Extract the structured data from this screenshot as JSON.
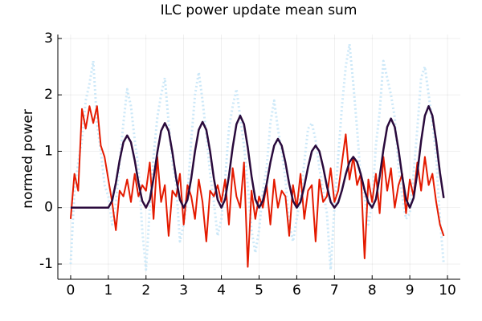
{
  "chart_data": {
    "type": "line",
    "title": "ILC power update mean sum",
    "y_label": "normed power",
    "x": [
      0,
      0.1,
      0.2,
      0.3,
      0.4,
      0.5,
      0.6,
      0.7,
      0.8,
      0.9,
      1,
      1.1,
      1.2,
      1.3,
      1.4,
      1.5,
      1.6,
      1.7,
      1.8,
      1.9,
      2,
      2.1,
      2.2,
      2.3,
      2.4,
      2.5,
      2.6,
      2.7,
      2.8,
      2.9,
      3,
      3.1,
      3.2,
      3.3,
      3.4,
      3.5,
      3.6,
      3.7,
      3.8,
      3.9,
      4,
      4.1,
      4.2,
      4.3,
      4.4,
      4.5,
      4.6,
      4.7,
      4.8,
      4.9,
      5,
      5.1,
      5.2,
      5.3,
      5.4,
      5.5,
      5.6,
      5.7,
      5.8,
      5.9,
      6,
      6.1,
      6.2,
      6.3,
      6.4,
      6.5,
      6.6,
      6.7,
      6.8,
      6.9,
      7,
      7.1,
      7.2,
      7.3,
      7.4,
      7.5,
      7.6,
      7.7,
      7.8,
      7.9,
      8,
      8.1,
      8.2,
      8.3,
      8.4,
      8.5,
      8.6,
      8.7,
      8.8,
      8.9,
      9,
      9.1,
      9.2,
      9.3,
      9.4,
      9.5,
      9.6,
      9.7,
      9.8,
      9.9
    ],
    "series": [
      {
        "color": "#cce8f8",
        "dash": "dotted",
        "width": 3,
        "values": [
          -1.0,
          0.3,
          0.8,
          1.2,
          1.9,
          2.2,
          2.6,
          1.5,
          1.0,
          0.4,
          0.2,
          -0.3,
          0.1,
          0.8,
          1.5,
          2.1,
          1.8,
          1.2,
          0.7,
          -0.4,
          -1.1,
          0.0,
          0.9,
          1.6,
          2.0,
          2.3,
          1.5,
          0.8,
          0.4,
          -0.6,
          -0.3,
          0.2,
          1.2,
          2.0,
          2.4,
          1.9,
          1.3,
          0.6,
          0.1,
          -0.5,
          -0.2,
          0.5,
          1.4,
          1.8,
          2.1,
          1.6,
          1.1,
          0.4,
          -0.4,
          -0.8,
          -0.4,
          0.3,
          0.7,
          1.5,
          1.9,
          1.4,
          1.0,
          0.5,
          -0.3,
          -0.6,
          -0.2,
          0.2,
          0.8,
          1.4,
          1.5,
          1.2,
          0.7,
          0.3,
          -0.1,
          -1.1,
          0.0,
          0.9,
          1.8,
          2.5,
          2.9,
          2.2,
          1.4,
          0.5,
          0.2,
          -0.3,
          0.1,
          1.1,
          1.7,
          2.6,
          2.3,
          2.0,
          1.6,
          0.7,
          0.2,
          -0.2,
          -0.1,
          0.6,
          1.4,
          2.3,
          2.5,
          2.0,
          1.5,
          0.9,
          -0.2,
          -1.0
        ]
      },
      {
        "color": "#e41a00",
        "dash": "solid",
        "width": 2,
        "values": [
          -0.2,
          0.6,
          0.3,
          1.75,
          1.4,
          1.8,
          1.5,
          1.8,
          1.1,
          0.9,
          0.5,
          0.1,
          -0.4,
          0.3,
          0.2,
          0.5,
          0.1,
          0.6,
          0.2,
          0.4,
          0.3,
          0.8,
          -0.2,
          0.9,
          0.1,
          0.4,
          -0.5,
          0.3,
          0.2,
          0.6,
          -0.3,
          0.4,
          0.2,
          -0.2,
          0.5,
          0.1,
          -0.6,
          0.3,
          0.2,
          0.4,
          0.1,
          0.5,
          -0.3,
          0.7,
          0.2,
          0.0,
          0.8,
          -1.05,
          0.3,
          -0.2,
          0.2,
          0.0,
          0.4,
          -0.3,
          0.5,
          0.0,
          0.3,
          0.2,
          -0.5,
          0.4,
          0.0,
          0.6,
          -0.2,
          0.3,
          0.4,
          -0.6,
          0.5,
          0.1,
          0.2,
          0.7,
          0.1,
          0.3,
          0.8,
          1.3,
          0.5,
          0.9,
          0.4,
          0.6,
          -0.9,
          0.5,
          0.1,
          0.6,
          -0.1,
          0.9,
          0.3,
          0.7,
          0.0,
          0.4,
          0.6,
          -0.1,
          0.5,
          0.2,
          0.8,
          0.3,
          0.9,
          0.4,
          0.6,
          0.1,
          -0.3,
          -0.5
        ]
      },
      {
        "color": "#2a0a3c",
        "dash": "solid",
        "width": 2.5,
        "values": [
          0,
          0,
          0,
          0,
          0,
          0,
          0,
          0,
          0,
          0,
          0,
          0.12,
          0.44,
          0.84,
          1.16,
          1.28,
          1.16,
          0.84,
          0.44,
          0.12,
          0,
          0.14,
          0.52,
          0.98,
          1.36,
          1.5,
          1.36,
          0.98,
          0.52,
          0.14,
          0,
          0.14,
          0.52,
          1.0,
          1.38,
          1.52,
          1.38,
          1.0,
          0.52,
          0.14,
          0,
          0.15,
          0.56,
          1.07,
          1.48,
          1.63,
          1.48,
          1.07,
          0.56,
          0.15,
          0,
          0.12,
          0.42,
          0.8,
          1.1,
          1.22,
          1.1,
          0.8,
          0.42,
          0.12,
          0,
          0.1,
          0.38,
          0.72,
          1.0,
          1.1,
          1.0,
          0.72,
          0.38,
          0.1,
          0,
          0.09,
          0.31,
          0.59,
          0.81,
          0.9,
          0.81,
          0.59,
          0.31,
          0.09,
          0,
          0.15,
          0.55,
          1.03,
          1.43,
          1.58,
          1.43,
          1.03,
          0.55,
          0.15,
          0,
          0.17,
          0.62,
          1.18,
          1.63,
          1.8,
          1.63,
          1.18,
          0.62,
          0.17
        ]
      }
    ],
    "xlim": [
      -0.34,
      10.34
    ],
    "ylim": [
      -1.27,
      3.07
    ],
    "xticks": [
      0,
      1,
      2,
      3,
      4,
      5,
      6,
      7,
      8,
      9,
      10
    ],
    "yticks": [
      -1,
      0,
      1,
      2,
      3
    ],
    "grid": true
  }
}
